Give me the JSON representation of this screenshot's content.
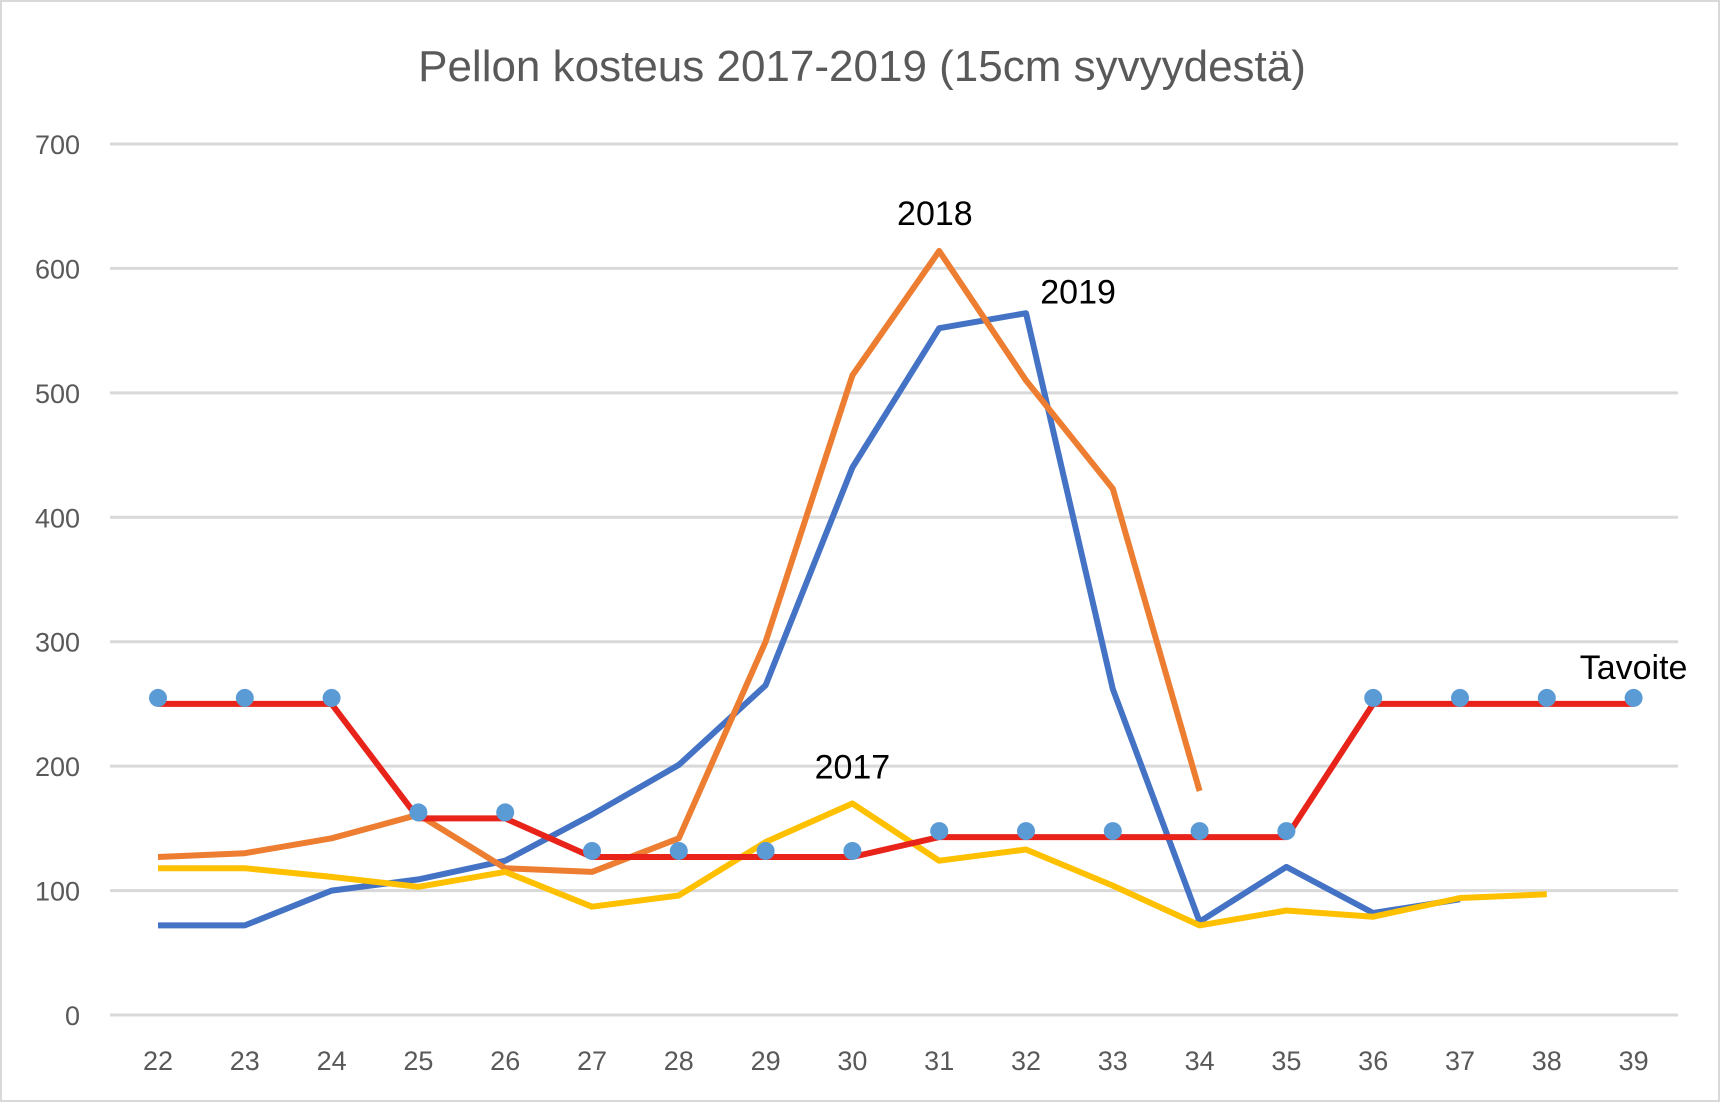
{
  "chart_data": {
    "type": "line",
    "title": "Pellon kosteus 2017-2019 (15cm syvyydestä)",
    "xlabel": "",
    "ylabel": "",
    "categories": [
      "22",
      "23",
      "24",
      "25",
      "26",
      "27",
      "28",
      "29",
      "30",
      "31",
      "32",
      "33",
      "34",
      "35",
      "36",
      "37",
      "38",
      "39"
    ],
    "ylim": [
      0,
      700
    ],
    "yticks": [
      0,
      100,
      200,
      300,
      400,
      500,
      600,
      700
    ],
    "grid": true,
    "legend": "none",
    "series": [
      {
        "key": "s2019",
        "color": "#4472c4",
        "marker": false,
        "values": [
          72,
          72,
          100,
          109,
          124,
          161,
          201,
          265,
          440,
          552,
          564,
          262,
          75,
          119,
          82,
          93,
          null,
          null
        ]
      },
      {
        "key": "s2018",
        "color": "#ed7d31",
        "marker": false,
        "values": [
          127,
          130,
          142,
          161,
          118,
          115,
          142,
          300,
          514,
          614,
          510,
          423,
          180,
          null,
          null,
          null,
          null,
          null
        ]
      },
      {
        "key": "s2017",
        "color": "#ffc000",
        "marker": false,
        "values": [
          118,
          118,
          111,
          103,
          115,
          87,
          96,
          139,
          170,
          124,
          133,
          104,
          72,
          84,
          79,
          94,
          97,
          null
        ]
      },
      {
        "key": "tavoite",
        "color": "#e8231a",
        "marker": true,
        "marker_color": "#5b9bd5",
        "values": [
          250,
          250,
          250,
          158,
          158,
          127,
          127,
          127,
          127,
          143,
          143,
          143,
          143,
          143,
          250,
          250,
          250,
          250
        ]
      }
    ],
    "annotations": [
      {
        "text": "2018",
        "x": "30.95",
        "y": 635
      },
      {
        "text": "2019",
        "x": "32.6",
        "y": 572
      },
      {
        "text": "2017",
        "x": "30",
        "y": 190
      },
      {
        "text": "Tavoite",
        "x": "39",
        "y": 270
      }
    ]
  }
}
